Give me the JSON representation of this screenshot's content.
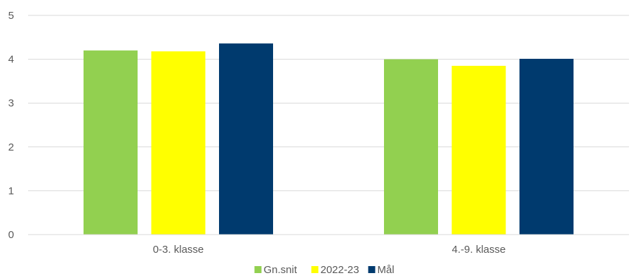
{
  "chart_data": {
    "type": "bar",
    "title": "",
    "xlabel": "",
    "ylabel": "",
    "categories": [
      "0-3. klasse",
      "4.-9. klasse"
    ],
    "series": [
      {
        "name": "Gn.snit",
        "values": [
          4.2,
          4.0
        ],
        "color": "#92d050"
      },
      {
        "name": "2022-23",
        "values": [
          4.18,
          3.85
        ],
        "color": "#ffff00"
      },
      {
        "name": "Mål",
        "values": [
          4.36,
          4.01
        ],
        "color": "#003a6e"
      }
    ],
    "ylim": [
      0,
      5
    ],
    "yticks": [
      "0",
      "1",
      "2",
      "3",
      "4",
      "5"
    ],
    "grid": true,
    "legend_position": "bottom"
  }
}
